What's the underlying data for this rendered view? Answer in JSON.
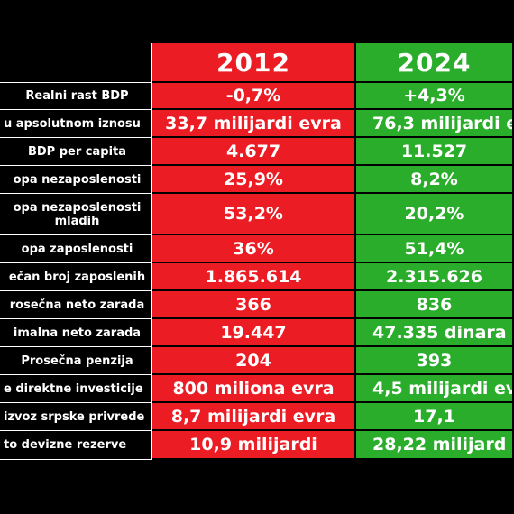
{
  "header": {
    "year_left": "2012",
    "year_right": "2024"
  },
  "rows": [
    {
      "label": "Realni rast BDP",
      "v2012": "-0,7%",
      "v2024": "+4,3%"
    },
    {
      "label": "u apsolutnom iznosu",
      "v2012": "33,7 milijardi evra",
      "v2024": "76,3 milijardi e"
    },
    {
      "label": "BDP per capita",
      "v2012": "4.677",
      "v2024": "11.527"
    },
    {
      "label": "opa nezaposlenosti",
      "v2012": "25,9%",
      "v2024": "8,2%"
    },
    {
      "label": "opa nezaposlenosti mladih",
      "v2012": "53,2%",
      "v2024": "20,2%"
    },
    {
      "label": "opa zaposlenosti",
      "v2012": "36%",
      "v2024": "51,4%"
    },
    {
      "label": "ečan broj zaposlenih",
      "v2012": "1.865.614",
      "v2024": "2.315.626"
    },
    {
      "label": "rosečna neto zarada",
      "v2012": "366",
      "v2024": "836"
    },
    {
      "label": "imalna neto zarada",
      "v2012": "19.447",
      "v2024": "47.335 dinara"
    },
    {
      "label": "Prosečna penzija",
      "v2012": "204",
      "v2024": "393"
    },
    {
      "label": "e direktne investicije",
      "v2012": "800 miliona evra",
      "v2024": "4,5 milijardi ev"
    },
    {
      "label": "izvoz srpske privrede",
      "v2012": "8,7 milijardi evra",
      "v2024": "17,1"
    },
    {
      "label": "to devizne rezerve",
      "v2012": "10,9 milijardi",
      "v2024": "28,22 milijard"
    }
  ]
}
